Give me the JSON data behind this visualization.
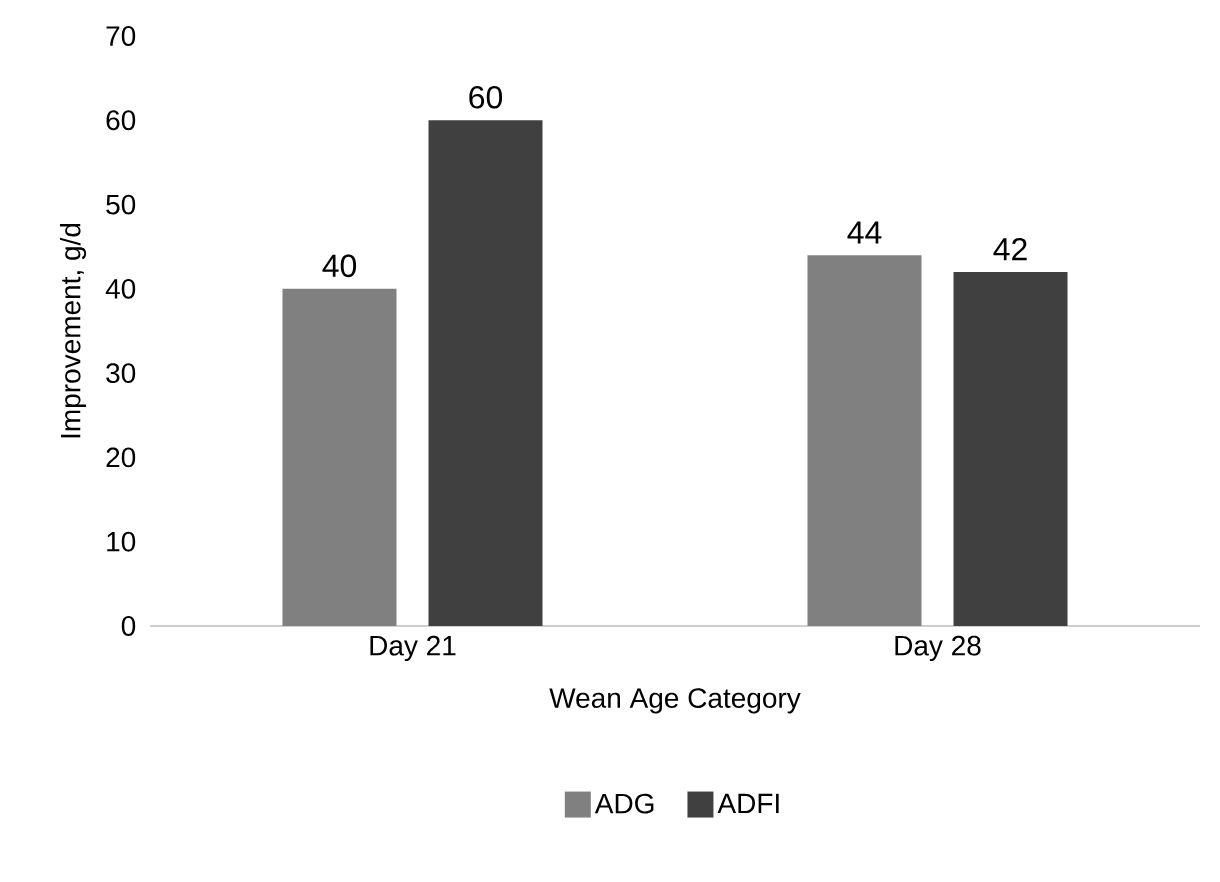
{
  "chart_data": {
    "type": "bar",
    "xlabel": "Wean Age Category",
    "ylabel": "Improvement, g/d",
    "categories": [
      "Day 21",
      "Day 28"
    ],
    "series": [
      {
        "name": "ADG",
        "color": "#808080",
        "values": [
          40,
          44
        ]
      },
      {
        "name": "ADFI",
        "color": "#404040",
        "values": [
          60,
          42
        ]
      }
    ],
    "ylim": [
      0,
      70
    ],
    "yticks": [
      0,
      10,
      20,
      30,
      40,
      50,
      60,
      70
    ],
    "legend": "bottom",
    "data_labels": true
  }
}
